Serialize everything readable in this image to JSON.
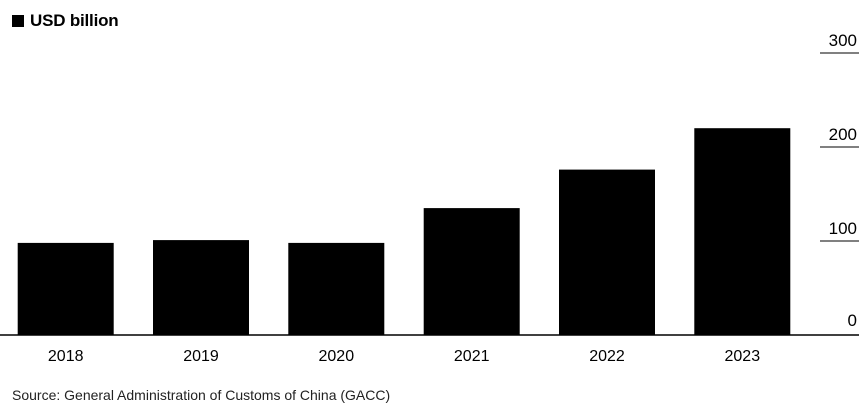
{
  "legend": {
    "label": "USD billion",
    "color": "#000000"
  },
  "source": "Source: General Administration of Customs of China (GACC)",
  "chart_data": {
    "type": "bar",
    "categories": [
      "2018",
      "2019",
      "2020",
      "2021",
      "2022",
      "2023"
    ],
    "series": [
      {
        "name": "USD billion",
        "values": [
          98,
          101,
          98,
          135,
          176,
          220
        ],
        "color": "#000000"
      }
    ],
    "title": "",
    "xlabel": "",
    "ylabel": "",
    "ylim": [
      0,
      300
    ],
    "yticks": [
      0,
      100,
      200,
      300
    ],
    "ytick_labels": [
      "0",
      "100",
      "200",
      "300"
    ],
    "yaxis_position": "right",
    "grid": false,
    "legend_position": "top-left"
  }
}
